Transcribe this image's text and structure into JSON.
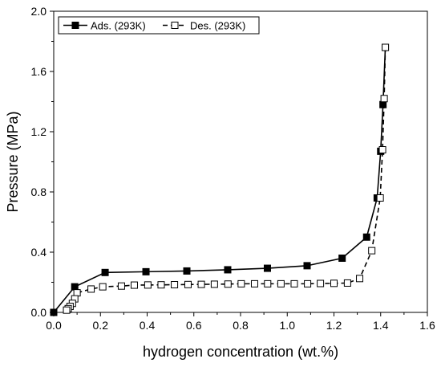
{
  "chart_data": {
    "type": "line",
    "title": "",
    "xlabel": "hydrogen concentration (wt.%)",
    "ylabel": "Pressure (MPa)",
    "xlim": [
      0.0,
      1.6
    ],
    "ylim": [
      0.0,
      2.0
    ],
    "x_ticks": [
      "0.0",
      "0.2",
      "0.4",
      "0.6",
      "0.8",
      "1.0",
      "1.2",
      "1.4",
      "1.6"
    ],
    "y_ticks": [
      "0.0",
      "0.4",
      "0.8",
      "1.2",
      "1.6",
      "2.0"
    ],
    "grid": false,
    "legend_position": "top-left",
    "series": [
      {
        "name": "Ads. (293K)",
        "line_style": "solid",
        "marker": "filled-square",
        "color": "#000000",
        "x": [
          0.0,
          0.09,
          0.22,
          0.395,
          0.57,
          0.745,
          0.915,
          1.085,
          1.235,
          1.34,
          1.385,
          1.4,
          1.41,
          1.42
        ],
        "y": [
          0.0,
          0.17,
          0.265,
          0.27,
          0.275,
          0.283,
          0.293,
          0.31,
          0.36,
          0.5,
          0.76,
          1.07,
          1.38,
          1.76
        ]
      },
      {
        "name": "Des. (293K)",
        "line_style": "dashed",
        "marker": "open-square",
        "color": "#000000",
        "x": [
          1.42,
          1.415,
          1.408,
          1.398,
          1.362,
          1.31,
          1.258,
          1.2,
          1.142,
          1.087,
          1.03,
          0.973,
          0.916,
          0.86,
          0.803,
          0.746,
          0.688,
          0.632,
          0.575,
          0.517,
          0.46,
          0.403,
          0.345,
          0.29,
          0.21,
          0.16,
          0.1,
          0.09,
          0.08,
          0.07,
          0.062,
          0.055
        ],
        "y": [
          1.76,
          1.42,
          1.08,
          0.76,
          0.41,
          0.225,
          0.195,
          0.193,
          0.192,
          0.19,
          0.19,
          0.19,
          0.19,
          0.19,
          0.19,
          0.188,
          0.187,
          0.186,
          0.185,
          0.184,
          0.183,
          0.182,
          0.181,
          0.175,
          0.17,
          0.155,
          0.13,
          0.09,
          0.06,
          0.04,
          0.025,
          0.015
        ]
      }
    ]
  }
}
